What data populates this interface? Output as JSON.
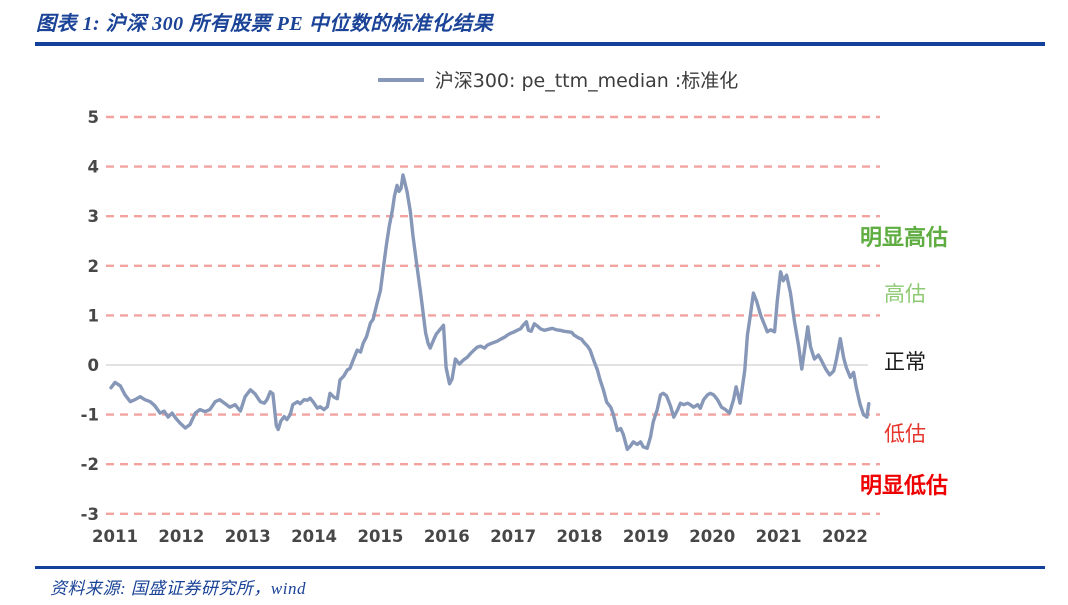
{
  "header": {
    "title": "图表 1:  沪深 300 所有股票 PE 中位数的标准化结果"
  },
  "source": {
    "text": "资料来源:  国盛证券研究所，wind"
  },
  "legend": {
    "label": "沪深300: pe_ttm_median :标准化"
  },
  "colors": {
    "navy_accent": "#12409a",
    "title_text": "#1b4397",
    "series_line": "#8697b8",
    "grid_dashed": "#f2a3a0",
    "zero_line": "#d9d9d9",
    "tick_text": "#474747"
  },
  "chart_data": {
    "type": "line",
    "title": "沪深300: pe_ttm_median :标准化",
    "xlabel": "",
    "ylabel": "",
    "legend_position": "top-center",
    "grid": "horizontal red dashed lines at every integer, solid light-gray line at 0",
    "x_ticks": [
      "2011",
      "2012",
      "2013",
      "2014",
      "2015",
      "2016",
      "2017",
      "2018",
      "2019",
      "2020",
      "2021",
      "2022"
    ],
    "y_ticks": [
      5,
      4,
      3,
      2,
      1,
      0,
      -1,
      -2,
      -3
    ],
    "ylim": [
      -3.4,
      5.4
    ],
    "xlim": [
      2010.9,
      2022.6
    ],
    "annotations": [
      {
        "label": "明显高估",
        "y": 2.55,
        "color": "#5fad41",
        "bold": true
      },
      {
        "label": "高估",
        "y": 1.42,
        "color": "#8ec973",
        "bold": false
      },
      {
        "label": "正常",
        "y": 0.05,
        "color": "#1a1a1a",
        "bold": false
      },
      {
        "label": "低估",
        "y": -1.42,
        "color": "#e6352b",
        "bold": false
      },
      {
        "label": "明显低估",
        "y": -2.45,
        "color": "#ee0000",
        "bold": true
      }
    ],
    "series": [
      {
        "name": "沪深300: pe_ttm_median :标准化",
        "color": "#8697b8",
        "points": [
          [
            2010.94,
            -0.46
          ],
          [
            2011.0,
            -0.35
          ],
          [
            2011.08,
            -0.42
          ],
          [
            2011.15,
            -0.6
          ],
          [
            2011.23,
            -0.74
          ],
          [
            2011.3,
            -0.7
          ],
          [
            2011.38,
            -0.64
          ],
          [
            2011.45,
            -0.7
          ],
          [
            2011.53,
            -0.74
          ],
          [
            2011.6,
            -0.82
          ],
          [
            2011.68,
            -0.97
          ],
          [
            2011.74,
            -0.93
          ],
          [
            2011.8,
            -1.05
          ],
          [
            2011.86,
            -0.97
          ],
          [
            2011.92,
            -1.08
          ],
          [
            2011.98,
            -1.17
          ],
          [
            2012.06,
            -1.27
          ],
          [
            2012.13,
            -1.2
          ],
          [
            2012.21,
            -0.97
          ],
          [
            2012.28,
            -0.9
          ],
          [
            2012.36,
            -0.94
          ],
          [
            2012.43,
            -0.9
          ],
          [
            2012.51,
            -0.74
          ],
          [
            2012.58,
            -0.7
          ],
          [
            2012.66,
            -0.78
          ],
          [
            2012.73,
            -0.85
          ],
          [
            2012.81,
            -0.8
          ],
          [
            2012.89,
            -0.93
          ],
          [
            2012.96,
            -0.64
          ],
          [
            2013.04,
            -0.5
          ],
          [
            2013.11,
            -0.58
          ],
          [
            2013.19,
            -0.74
          ],
          [
            2013.25,
            -0.77
          ],
          [
            2013.29,
            -0.7
          ],
          [
            2013.34,
            -0.54
          ],
          [
            2013.38,
            -0.58
          ],
          [
            2013.43,
            -1.22
          ],
          [
            2013.46,
            -1.3
          ],
          [
            2013.5,
            -1.13
          ],
          [
            2013.55,
            -1.04
          ],
          [
            2013.59,
            -1.1
          ],
          [
            2013.64,
            -1.0
          ],
          [
            2013.68,
            -0.8
          ],
          [
            2013.75,
            -0.74
          ],
          [
            2013.79,
            -0.78
          ],
          [
            2013.85,
            -0.7
          ],
          [
            2013.9,
            -0.71
          ],
          [
            2013.94,
            -0.67
          ],
          [
            2013.99,
            -0.75
          ],
          [
            2014.05,
            -0.87
          ],
          [
            2014.09,
            -0.84
          ],
          [
            2014.15,
            -0.9
          ],
          [
            2014.2,
            -0.84
          ],
          [
            2014.24,
            -0.57
          ],
          [
            2014.3,
            -0.65
          ],
          [
            2014.35,
            -0.68
          ],
          [
            2014.39,
            -0.3
          ],
          [
            2014.45,
            -0.22
          ],
          [
            2014.5,
            -0.1
          ],
          [
            2014.54,
            -0.07
          ],
          [
            2014.59,
            0.1
          ],
          [
            2014.65,
            0.3
          ],
          [
            2014.7,
            0.26
          ],
          [
            2014.74,
            0.44
          ],
          [
            2014.79,
            0.57
          ],
          [
            2014.85,
            0.85
          ],
          [
            2014.89,
            0.92
          ],
          [
            2014.95,
            1.25
          ],
          [
            2015.0,
            1.5
          ],
          [
            2015.04,
            1.92
          ],
          [
            2015.09,
            2.42
          ],
          [
            2015.13,
            2.78
          ],
          [
            2015.18,
            3.12
          ],
          [
            2015.21,
            3.4
          ],
          [
            2015.25,
            3.62
          ],
          [
            2015.28,
            3.5
          ],
          [
            2015.31,
            3.56
          ],
          [
            2015.34,
            3.83
          ],
          [
            2015.4,
            3.5
          ],
          [
            2015.45,
            3.1
          ],
          [
            2015.49,
            2.6
          ],
          [
            2015.55,
            2.0
          ],
          [
            2015.6,
            1.5
          ],
          [
            2015.63,
            1.2
          ],
          [
            2015.68,
            0.65
          ],
          [
            2015.72,
            0.43
          ],
          [
            2015.75,
            0.34
          ],
          [
            2015.8,
            0.5
          ],
          [
            2015.84,
            0.62
          ],
          [
            2015.9,
            0.72
          ],
          [
            2015.95,
            0.8
          ],
          [
            2015.99,
            -0.05
          ],
          [
            2016.04,
            -0.38
          ],
          [
            2016.08,
            -0.28
          ],
          [
            2016.13,
            0.12
          ],
          [
            2016.19,
            0.02
          ],
          [
            2016.25,
            0.1
          ],
          [
            2016.31,
            0.16
          ],
          [
            2016.35,
            0.22
          ],
          [
            2016.41,
            0.3
          ],
          [
            2016.46,
            0.36
          ],
          [
            2016.51,
            0.38
          ],
          [
            2016.57,
            0.34
          ],
          [
            2016.61,
            0.4
          ],
          [
            2016.66,
            0.43
          ],
          [
            2016.72,
            0.46
          ],
          [
            2016.76,
            0.48
          ],
          [
            2016.81,
            0.52
          ],
          [
            2016.87,
            0.56
          ],
          [
            2016.91,
            0.6
          ],
          [
            2016.96,
            0.64
          ],
          [
            2017.0,
            0.66
          ],
          [
            2017.06,
            0.7
          ],
          [
            2017.11,
            0.73
          ],
          [
            2017.15,
            0.8
          ],
          [
            2017.2,
            0.87
          ],
          [
            2017.23,
            0.7
          ],
          [
            2017.27,
            0.68
          ],
          [
            2017.32,
            0.83
          ],
          [
            2017.37,
            0.78
          ],
          [
            2017.41,
            0.73
          ],
          [
            2017.47,
            0.7
          ],
          [
            2017.53,
            0.72
          ],
          [
            2017.59,
            0.74
          ],
          [
            2017.65,
            0.71
          ],
          [
            2017.71,
            0.7
          ],
          [
            2017.77,
            0.68
          ],
          [
            2017.83,
            0.67
          ],
          [
            2017.88,
            0.66
          ],
          [
            2017.92,
            0.6
          ],
          [
            2017.98,
            0.55
          ],
          [
            2018.03,
            0.52
          ],
          [
            2018.07,
            0.45
          ],
          [
            2018.12,
            0.38
          ],
          [
            2018.16,
            0.3
          ],
          [
            2018.22,
            0.07
          ],
          [
            2018.27,
            -0.1
          ],
          [
            2018.31,
            -0.3
          ],
          [
            2018.36,
            -0.5
          ],
          [
            2018.41,
            -0.75
          ],
          [
            2018.47,
            -0.85
          ],
          [
            2018.51,
            -1.0
          ],
          [
            2018.57,
            -1.32
          ],
          [
            2018.62,
            -1.28
          ],
          [
            2018.66,
            -1.4
          ],
          [
            2018.72,
            -1.7
          ],
          [
            2018.77,
            -1.63
          ],
          [
            2018.81,
            -1.55
          ],
          [
            2018.87,
            -1.6
          ],
          [
            2018.92,
            -1.55
          ],
          [
            2018.96,
            -1.65
          ],
          [
            2019.02,
            -1.68
          ],
          [
            2019.07,
            -1.45
          ],
          [
            2019.11,
            -1.15
          ],
          [
            2019.17,
            -0.9
          ],
          [
            2019.22,
            -0.6
          ],
          [
            2019.26,
            -0.57
          ],
          [
            2019.31,
            -0.62
          ],
          [
            2019.37,
            -0.82
          ],
          [
            2019.42,
            -1.05
          ],
          [
            2019.48,
            -0.9
          ],
          [
            2019.52,
            -0.77
          ],
          [
            2019.57,
            -0.8
          ],
          [
            2019.63,
            -0.77
          ],
          [
            2019.67,
            -0.8
          ],
          [
            2019.72,
            -0.85
          ],
          [
            2019.78,
            -0.8
          ],
          [
            2019.82,
            -0.87
          ],
          [
            2019.87,
            -0.7
          ],
          [
            2019.93,
            -0.6
          ],
          [
            2019.97,
            -0.57
          ],
          [
            2020.02,
            -0.6
          ],
          [
            2020.08,
            -0.7
          ],
          [
            2020.14,
            -0.85
          ],
          [
            2020.2,
            -0.9
          ],
          [
            2020.26,
            -0.97
          ],
          [
            2020.32,
            -0.7
          ],
          [
            2020.36,
            -0.44
          ],
          [
            2020.42,
            -0.77
          ],
          [
            2020.49,
            -0.1
          ],
          [
            2020.53,
            0.6
          ],
          [
            2020.58,
            1.05
          ],
          [
            2020.62,
            1.45
          ],
          [
            2020.67,
            1.28
          ],
          [
            2020.73,
            1.0
          ],
          [
            2020.79,
            0.8
          ],
          [
            2020.83,
            0.67
          ],
          [
            2020.88,
            0.71
          ],
          [
            2020.94,
            0.67
          ],
          [
            2020.98,
            1.3
          ],
          [
            2021.03,
            1.88
          ],
          [
            2021.07,
            1.7
          ],
          [
            2021.12,
            1.81
          ],
          [
            2021.18,
            1.45
          ],
          [
            2021.24,
            0.87
          ],
          [
            2021.3,
            0.4
          ],
          [
            2021.35,
            -0.08
          ],
          [
            2021.39,
            0.3
          ],
          [
            2021.44,
            0.77
          ],
          [
            2021.48,
            0.37
          ],
          [
            2021.54,
            0.12
          ],
          [
            2021.6,
            0.2
          ],
          [
            2021.65,
            0.08
          ],
          [
            2021.71,
            -0.08
          ],
          [
            2021.77,
            -0.2
          ],
          [
            2021.83,
            -0.12
          ],
          [
            2021.87,
            0.1
          ],
          [
            2021.93,
            0.53
          ],
          [
            2021.98,
            0.15
          ],
          [
            2022.02,
            -0.05
          ],
          [
            2022.08,
            -0.25
          ],
          [
            2022.13,
            -0.15
          ],
          [
            2022.17,
            -0.45
          ],
          [
            2022.23,
            -0.8
          ],
          [
            2022.28,
            -1.0
          ],
          [
            2022.33,
            -1.05
          ],
          [
            2022.36,
            -0.78
          ]
        ]
      }
    ]
  }
}
